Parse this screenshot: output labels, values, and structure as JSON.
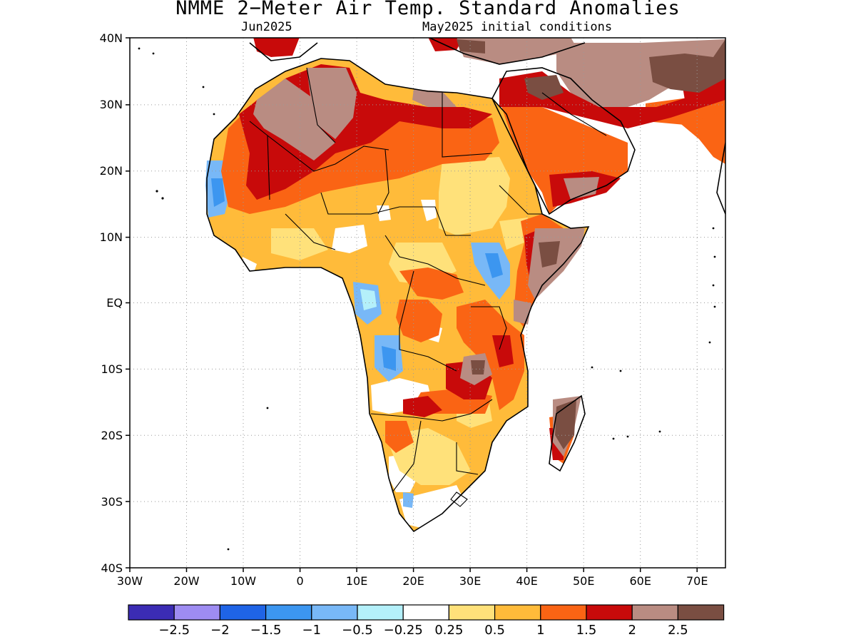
{
  "title": "NMME 2−Meter Air Temp. Standard Anomalies",
  "valid_month": "Jun2025",
  "init_conditions": "May2025 initial conditions",
  "lat_ticks": [
    "40N",
    "30N",
    "20N",
    "10N",
    "EQ",
    "10S",
    "20S",
    "30S",
    "40S"
  ],
  "lon_ticks": [
    "30W",
    "20W",
    "10W",
    "0",
    "10E",
    "20E",
    "30E",
    "40E",
    "50E",
    "60E",
    "70E"
  ],
  "colorbar": {
    "colors": [
      "#3b2cb4",
      "#9e8cf2",
      "#1f64e6",
      "#3c96f0",
      "#78b8f7",
      "#b4f0fa",
      "#ffffff",
      "#ffe17a",
      "#ffbb3a",
      "#fa6414",
      "#c80a0a",
      "#b98c82",
      "#7a4e42"
    ],
    "labels": [
      "−2.5",
      "−2",
      "−1.5",
      "−1",
      "−0.5",
      "−0.25",
      "0.25",
      "0.5",
      "1",
      "1.5",
      "2",
      "2.5"
    ]
  }
}
